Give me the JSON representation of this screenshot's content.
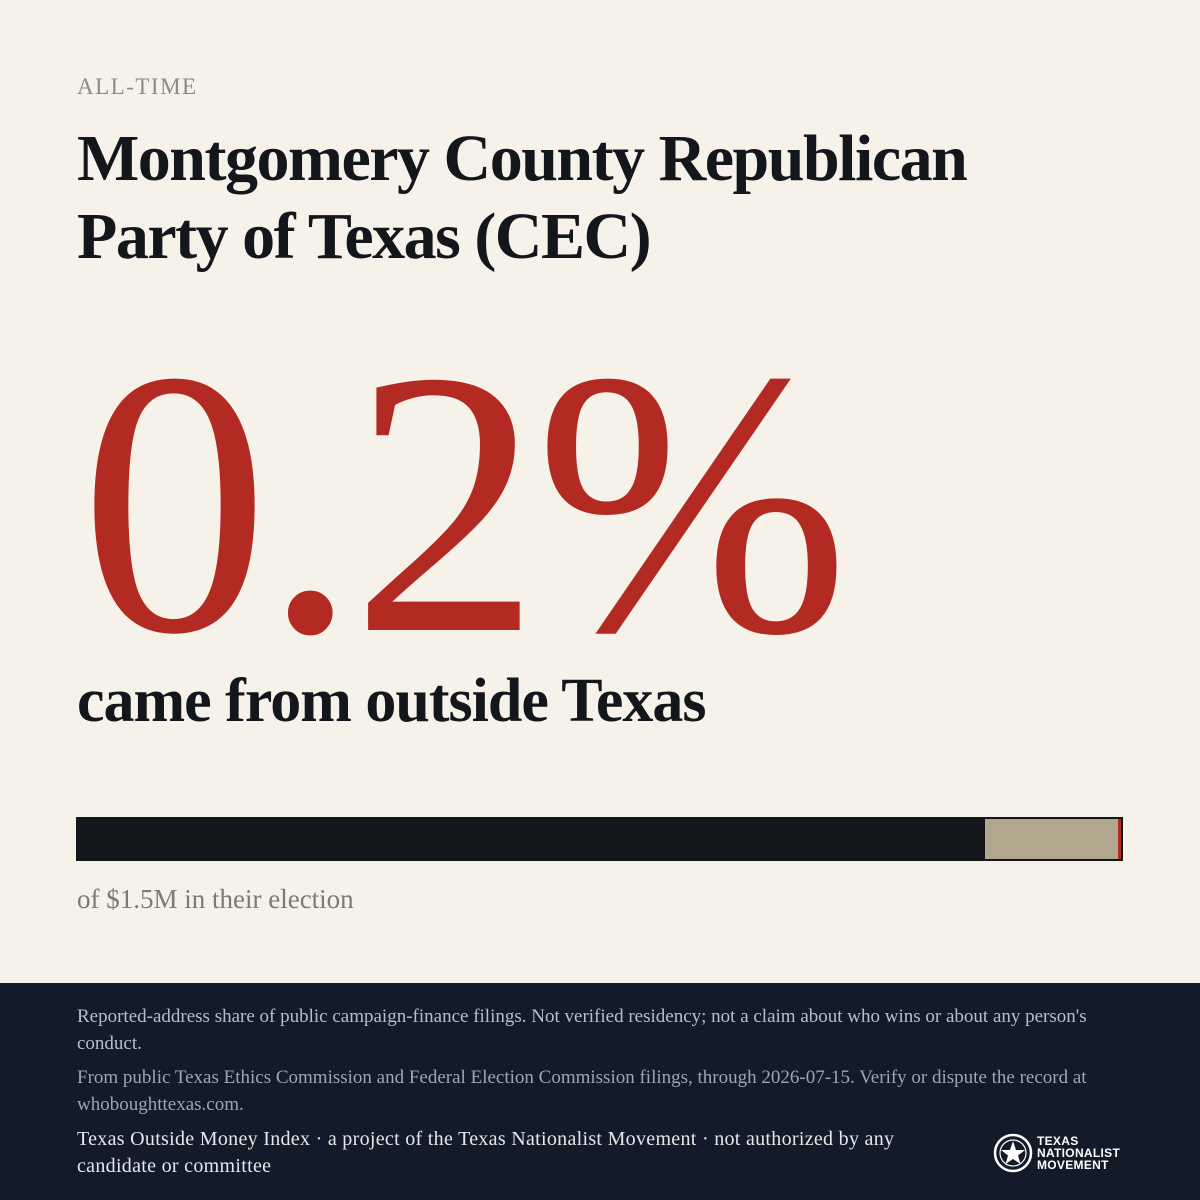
{
  "eyebrow": "ALL-TIME",
  "title": "Montgomery County Republican Party of Texas (CEC)",
  "headline": {
    "value": "0.2%",
    "caption": "came from outside Texas"
  },
  "bar": {
    "outside_share_percent": 0.2,
    "texas_portion_fraction": 0.87,
    "colors": {
      "texas": "#13161b",
      "outside": "#b1a78e",
      "accent": "#b22a22"
    }
  },
  "total_caption": "of $1.5M in their election",
  "footer": {
    "disclaimer": "Reported-address share of public campaign-finance filings. Not verified residency; not a claim about who wins or about any person's conduct.",
    "source": "From public Texas Ethics Commission and Federal Election Commission filings, through 2026-07-15. Verify or dispute the record at whoboughttexas.com.",
    "credit": "Texas Outside Money Index · a project of the Texas Nationalist Movement · not authorized by any candidate or committee",
    "logo": {
      "icon": "star-seal-icon",
      "lines": [
        "TEXAS",
        "NATIONALIST",
        "MOVEMENT"
      ]
    }
  },
  "colors": {
    "background": "#f6f1e9",
    "accent": "#b22a22",
    "ink": "#13161b",
    "footer": "#111b29"
  }
}
